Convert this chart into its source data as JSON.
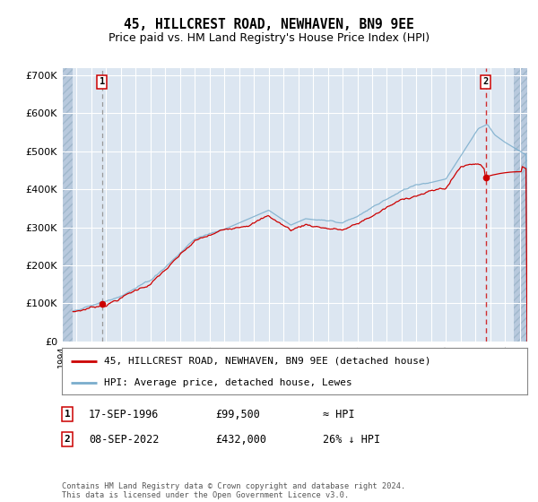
{
  "title": "45, HILLCREST ROAD, NEWHAVEN, BN9 9EE",
  "subtitle": "Price paid vs. HM Land Registry's House Price Index (HPI)",
  "ylim": [
    0,
    720000
  ],
  "yticks": [
    0,
    100000,
    200000,
    300000,
    400000,
    500000,
    600000,
    700000
  ],
  "ytick_labels": [
    "£0",
    "£100K",
    "£200K",
    "£300K",
    "£400K",
    "£500K",
    "£600K",
    "£700K"
  ],
  "plot_bg_color": "#dce6f1",
  "hatch_color": "#b8c9dd",
  "grid_color": "#ffffff",
  "line_color_red": "#cc0000",
  "line_color_blue": "#7aadcc",
  "vline1_color": "#aaaaaa",
  "vline2_color": "#cc0000",
  "sale1_date": 1996.71,
  "sale1_price": 99500,
  "sale2_date": 2022.68,
  "sale2_price": 432000,
  "legend_entry1": "45, HILLCREST ROAD, NEWHAVEN, BN9 9EE (detached house)",
  "legend_entry2": "HPI: Average price, detached house, Lewes",
  "table_row1_num": "1",
  "table_row1_date": "17-SEP-1996",
  "table_row1_price": "£99,500",
  "table_row1_hpi": "≈ HPI",
  "table_row2_num": "2",
  "table_row2_date": "08-SEP-2022",
  "table_row2_price": "£432,000",
  "table_row2_hpi": "26% ↓ HPI",
  "footer": "Contains HM Land Registry data © Crown copyright and database right 2024.\nThis data is licensed under the Open Government Licence v3.0.",
  "xlim_left": 1994.0,
  "xlim_right": 2025.5
}
